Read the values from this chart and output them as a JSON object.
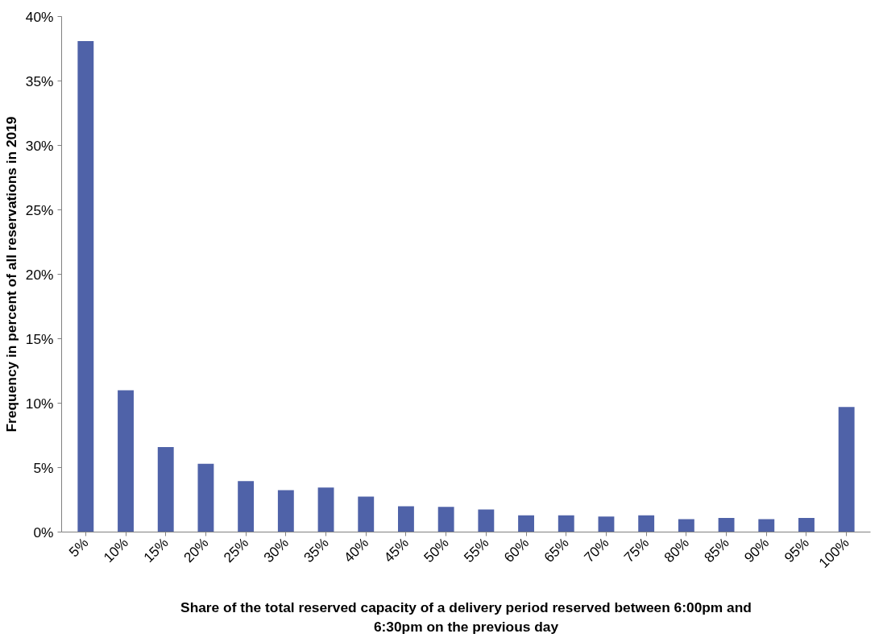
{
  "chart_data": {
    "type": "bar",
    "xlabel": "Share of the total reserved capacity of a delivery period reserved between 6:00pm and 6:30pm on the previous day",
    "ylabel": "Frequency in percent of all reservations in 2019",
    "categories": [
      "5%",
      "10%",
      "15%",
      "20%",
      "25%",
      "30%",
      "35%",
      "40%",
      "45%",
      "50%",
      "55%",
      "60%",
      "65%",
      "70%",
      "75%",
      "80%",
      "85%",
      "90%",
      "95%",
      "100%"
    ],
    "values": [
      38.1,
      11.0,
      6.6,
      5.3,
      3.95,
      3.25,
      3.45,
      2.75,
      2.0,
      1.95,
      1.75,
      1.3,
      1.3,
      1.2,
      1.3,
      1.0,
      1.1,
      1.0,
      1.1,
      9.7
    ],
    "color": "#4f62a8",
    "ylim": [
      0,
      40
    ],
    "yticks": [
      {
        "value": 0,
        "label": "0%"
      },
      {
        "value": 5,
        "label": "5%"
      },
      {
        "value": 10,
        "label": "10%"
      },
      {
        "value": 15,
        "label": "15%"
      },
      {
        "value": 20,
        "label": "20%"
      },
      {
        "value": 25,
        "label": "25%"
      },
      {
        "value": 30,
        "label": "30%"
      },
      {
        "value": 35,
        "label": "35%"
      },
      {
        "value": 40,
        "label": "40%"
      }
    ],
    "grid": false
  }
}
